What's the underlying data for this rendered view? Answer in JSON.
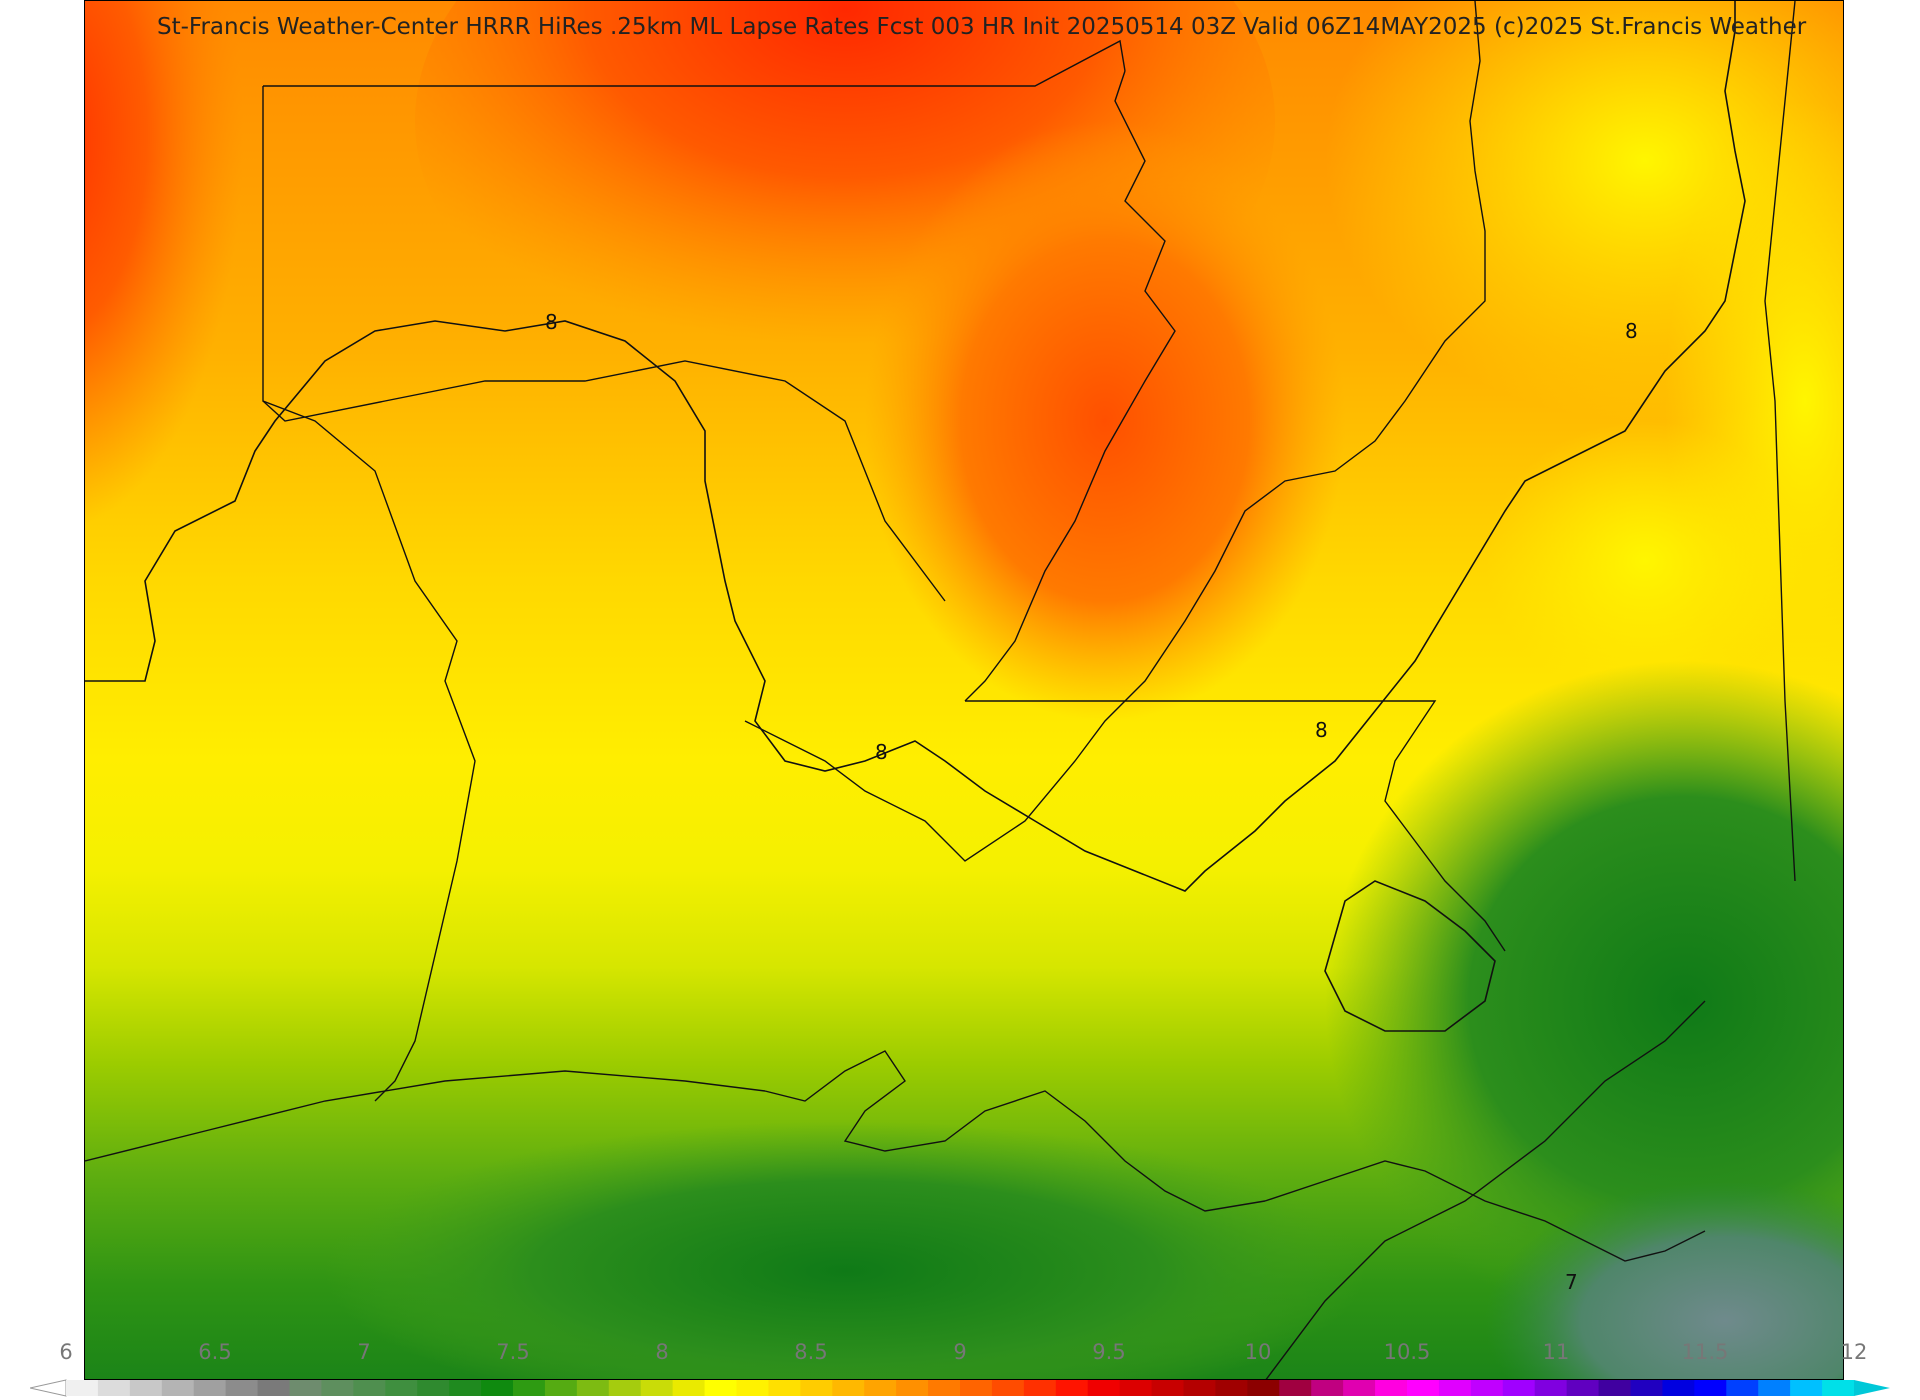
{
  "title": "St-Francis Weather-Center HRRR HiRes .25km ML Lapse Rates  Fcst 003 HR Init 20250514 03Z  Valid 06Z14MAY2025   (c)2025 St.Francis Weather",
  "contour_labels": [
    "8",
    "8",
    "8",
    "8",
    "7"
  ],
  "colorbar": {
    "ticks": [
      "6",
      "6.5",
      "7",
      "7.5",
      "8",
      "8.5",
      "9",
      "9.5",
      "10",
      "10.5",
      "11",
      "11.5",
      "12"
    ],
    "min": 6,
    "max": 12,
    "colors": [
      "#f0f0f0",
      "#dcdcdc",
      "#c8c8c8",
      "#b4b4b4",
      "#a0a0a0",
      "#8c8c8c",
      "#7a7a7a",
      "#6e8c6e",
      "#5e8f5e",
      "#4f8f4f",
      "#3f8f3f",
      "#2f8a2f",
      "#1f8a1f",
      "#0f8a0f",
      "#2e9b12",
      "#55ab12",
      "#7dbb12",
      "#a5cc0e",
      "#c9dc08",
      "#eaea00",
      "#ffff00",
      "#fff200",
      "#ffe000",
      "#ffcc00",
      "#ffb800",
      "#ffa400",
      "#ff9000",
      "#ff7a00",
      "#ff6400",
      "#ff4c00",
      "#ff3000",
      "#ff1400",
      "#f00000",
      "#dc0000",
      "#c80000",
      "#b40000",
      "#a00000",
      "#8c0000",
      "#a00040",
      "#c00080",
      "#e000b0",
      "#ff00e0",
      "#ff00ff",
      "#e000ff",
      "#c000ff",
      "#a000ff",
      "#8000e0",
      "#6000c0",
      "#4000a0",
      "#2000c0",
      "#0000e0",
      "#0000ff",
      "#0040ff",
      "#0080ff",
      "#00c0ff",
      "#00e0e8"
    ],
    "under_color": "#ffffff",
    "over_color": "#00c8d8"
  },
  "legend_colors": {
    "orange_red": "#ff3a00",
    "orange": "#ff9500",
    "yellow": "#ffee00",
    "lime": "#b8e000",
    "green": "#3a9a1a",
    "dark_green": "#117a17"
  }
}
